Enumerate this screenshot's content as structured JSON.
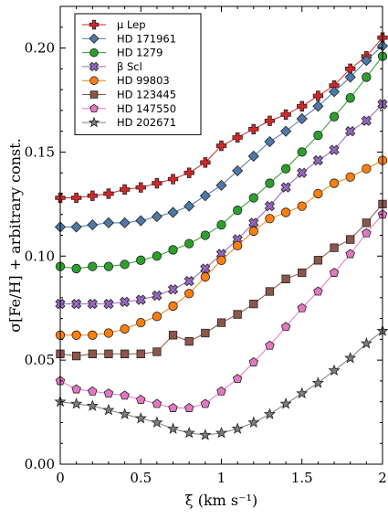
{
  "chart_data": {
    "type": "line",
    "xlabel": "ξ (km s⁻¹)",
    "ylabel": "σ[Fe/H] + arbitrary const.",
    "xlim": [
      0,
      2
    ],
    "ylim": [
      0,
      0.22
    ],
    "x_ticks": [
      "0",
      "0.5",
      "1",
      "1.5",
      "2"
    ],
    "y_ticks": [
      "0.00",
      "0.05",
      "0.10",
      "0.15",
      "0.20"
    ],
    "legend_position": "top-left",
    "grid": false,
    "x": [
      0,
      0.1,
      0.2,
      0.3,
      0.4,
      0.5,
      0.6,
      0.7,
      0.8,
      0.9,
      1.0,
      1.1,
      1.2,
      1.3,
      1.4,
      1.5,
      1.6,
      1.7,
      1.8,
      1.9,
      2.0
    ],
    "series": [
      {
        "name": "μ Lep",
        "color": "#d62728",
        "marker": "plus",
        "values": [
          0.128,
          0.128,
          0.129,
          0.13,
          0.132,
          0.133,
          0.135,
          0.137,
          0.14,
          0.145,
          0.153,
          0.157,
          0.161,
          0.165,
          0.168,
          0.172,
          0.177,
          0.182,
          0.19,
          0.196,
          0.205
        ]
      },
      {
        "name": "HD 171961",
        "color": "#4e79a7",
        "marker": "diamond",
        "values": [
          0.114,
          0.114,
          0.115,
          0.116,
          0.116,
          0.117,
          0.119,
          0.121,
          0.124,
          0.129,
          0.134,
          0.141,
          0.148,
          0.155,
          0.16,
          0.166,
          0.172,
          0.179,
          0.186,
          0.194,
          0.201
        ]
      },
      {
        "name": "HD 1279",
        "color": "#2ca02c",
        "marker": "circle",
        "values": [
          0.095,
          0.094,
          0.095,
          0.095,
          0.096,
          0.098,
          0.1,
          0.103,
          0.106,
          0.11,
          0.115,
          0.122,
          0.128,
          0.135,
          0.142,
          0.15,
          0.158,
          0.167,
          0.176,
          0.186,
          0.196
        ]
      },
      {
        "name": "β Scl",
        "color": "#9467bd",
        "marker": "cross",
        "values": [
          0.077,
          0.077,
          0.077,
          0.077,
          0.078,
          0.079,
          0.081,
          0.084,
          0.088,
          0.094,
          0.101,
          0.108,
          0.116,
          0.124,
          0.133,
          0.14,
          0.146,
          0.151,
          0.16,
          0.165,
          0.173
        ]
      },
      {
        "name": "HD 99803",
        "color": "#ff7f0e",
        "marker": "circle",
        "values": [
          0.062,
          0.062,
          0.062,
          0.063,
          0.065,
          0.068,
          0.071,
          0.076,
          0.082,
          0.09,
          0.098,
          0.105,
          0.112,
          0.118,
          0.121,
          0.124,
          0.13,
          0.135,
          0.138,
          0.142,
          0.146
        ]
      },
      {
        "name": "HD 123445",
        "color": "#8c564b",
        "marker": "square",
        "values": [
          0.053,
          0.052,
          0.053,
          0.053,
          0.053,
          0.053,
          0.054,
          0.062,
          0.059,
          0.063,
          0.068,
          0.072,
          0.077,
          0.083,
          0.089,
          0.092,
          0.098,
          0.104,
          0.108,
          0.116,
          0.125
        ]
      },
      {
        "name": "HD 147550",
        "color": "#e377c2",
        "marker": "pentagon",
        "values": [
          0.04,
          0.036,
          0.035,
          0.034,
          0.033,
          0.031,
          0.029,
          0.027,
          0.027,
          0.029,
          0.035,
          0.041,
          0.049,
          0.057,
          0.066,
          0.075,
          0.083,
          0.092,
          0.101,
          0.111,
          0.12
        ]
      },
      {
        "name": "HD 202671",
        "color": "#7f7f7f",
        "marker": "star",
        "values": [
          0.03,
          0.029,
          0.028,
          0.026,
          0.024,
          0.022,
          0.02,
          0.017,
          0.015,
          0.014,
          0.015,
          0.017,
          0.02,
          0.024,
          0.029,
          0.034,
          0.039,
          0.045,
          0.051,
          0.058,
          0.064
        ]
      }
    ]
  }
}
